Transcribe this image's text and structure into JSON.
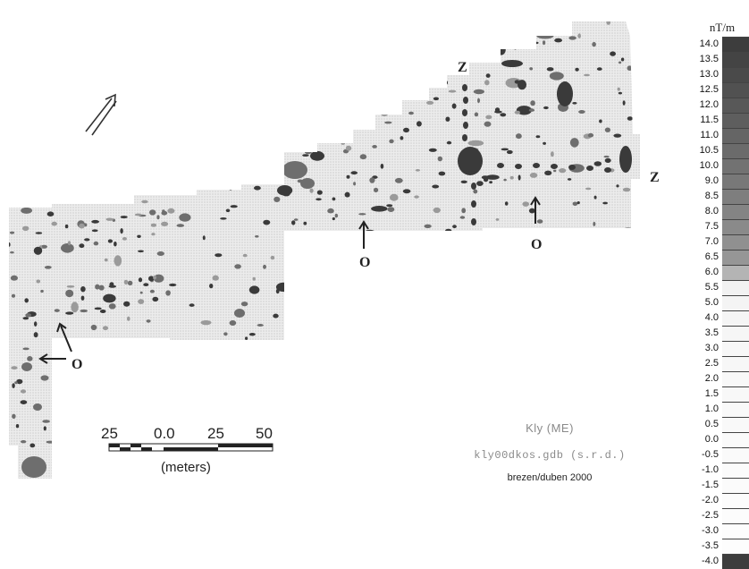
{
  "map": {
    "labels": {
      "north_arrow": "north-arrow",
      "z_left": "Z",
      "z_right": "Z",
      "o_center": "O",
      "o_right": "O",
      "o_left": "O"
    }
  },
  "scalebar": {
    "ticks": [
      "25",
      "0.0",
      "25",
      "50"
    ],
    "unit": "(meters)"
  },
  "caption": {
    "site": "Kly (ME)",
    "file": "kly00dkos.gdb (s.r.d.)",
    "date": "brezen/duben 2000"
  },
  "legend": {
    "unit": "nT/m",
    "entries": [
      {
        "value": "14.0",
        "color": "#3d3d3d"
      },
      {
        "value": "13.5",
        "color": "#444444"
      },
      {
        "value": "13.0",
        "color": "#4a4a4a"
      },
      {
        "value": "12.5",
        "color": "#515151"
      },
      {
        "value": "12.0",
        "color": "#585858"
      },
      {
        "value": "11.5",
        "color": "#5e5e5e"
      },
      {
        "value": "11.0",
        "color": "#656565"
      },
      {
        "value": "10.5",
        "color": "#6b6b6b"
      },
      {
        "value": "10.0",
        "color": "#727272"
      },
      {
        "value": "9.0",
        "color": "#787878"
      },
      {
        "value": "8.5",
        "color": "#7e7e7e"
      },
      {
        "value": "8.0",
        "color": "#848484"
      },
      {
        "value": "7.5",
        "color": "#8a8a8a"
      },
      {
        "value": "7.0",
        "color": "#909090"
      },
      {
        "value": "6.5",
        "color": "#969696"
      },
      {
        "value": "6.0",
        "color": "#b4b4b4"
      },
      {
        "value": "5.5",
        "color": "#f2f2f2"
      },
      {
        "value": "5.0",
        "color": "#f4f4f4"
      },
      {
        "value": "4.0",
        "color": "#f5f5f5"
      },
      {
        "value": "3.5",
        "color": "#f6f6f6"
      },
      {
        "value": "3.0",
        "color": "#f7f7f7"
      },
      {
        "value": "2.5",
        "color": "#f7f7f7"
      },
      {
        "value": "2.0",
        "color": "#f8f8f8"
      },
      {
        "value": "1.5",
        "color": "#f8f8f8"
      },
      {
        "value": "1.0",
        "color": "#f9f9f9"
      },
      {
        "value": "0.5",
        "color": "#f9f9f9"
      },
      {
        "value": "0.0",
        "color": "#fafafa"
      },
      {
        "value": "-0.5",
        "color": "#fafafa"
      },
      {
        "value": "-1.0",
        "color": "#fbfbfb"
      },
      {
        "value": "-1.5",
        "color": "#fbfbfb"
      },
      {
        "value": "-2.0",
        "color": "#fcfcfc"
      },
      {
        "value": "-2.5",
        "color": "#fcfcfc"
      },
      {
        "value": "-3.0",
        "color": "#fdfdfd"
      },
      {
        "value": "-3.5",
        "color": "#fdfdfd"
      },
      {
        "value": "-4.0",
        "color": "#3d3d3d"
      }
    ]
  },
  "colors": {
    "survey_fill": "#e6e6e6",
    "anomaly_dark": "#3a3a3a",
    "anomaly_mid": "#6e6e6e"
  }
}
